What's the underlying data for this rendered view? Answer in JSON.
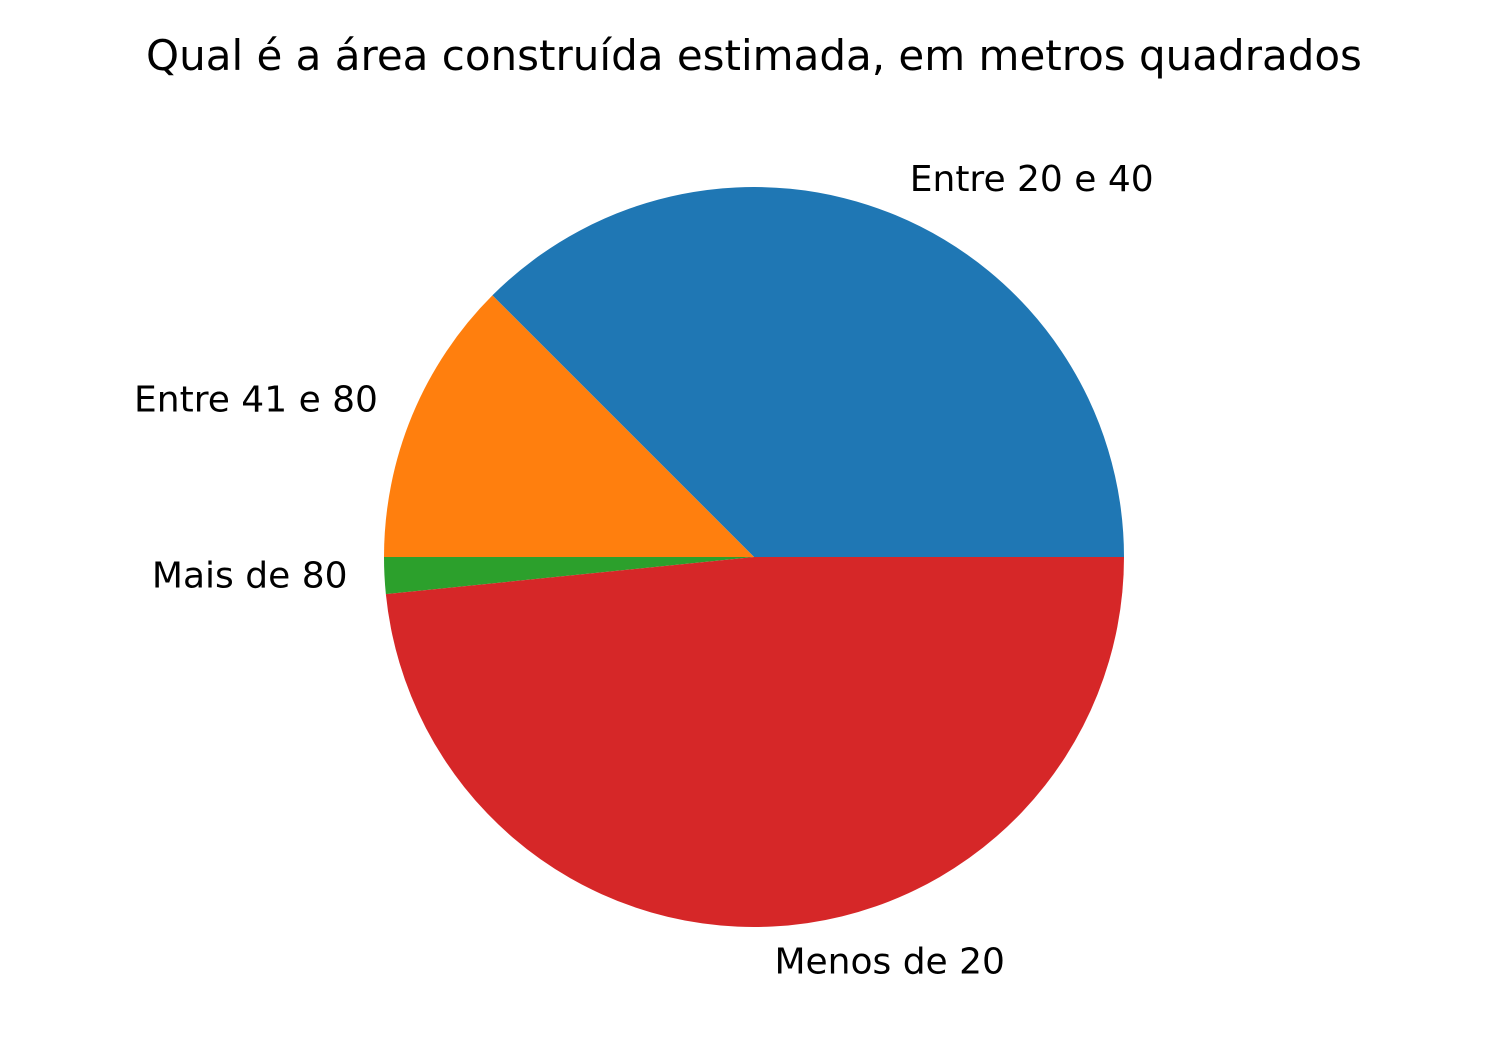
{
  "chart_data": {
    "type": "pie",
    "title": "Qual é a área construída estimada, em metros quadrados",
    "labels": [
      "Entre 20 e 40",
      "Entre 41 e 80",
      "Mais de 80",
      "Menos de 20"
    ],
    "values": [
      37.5,
      12.5,
      1.6,
      48.4
    ],
    "colors": [
      "#1f77b4",
      "#ff7f0e",
      "#2ca02c",
      "#d62728"
    ],
    "start_angle_deg": 0,
    "direction": "counterclockwise",
    "legend": "none"
  }
}
